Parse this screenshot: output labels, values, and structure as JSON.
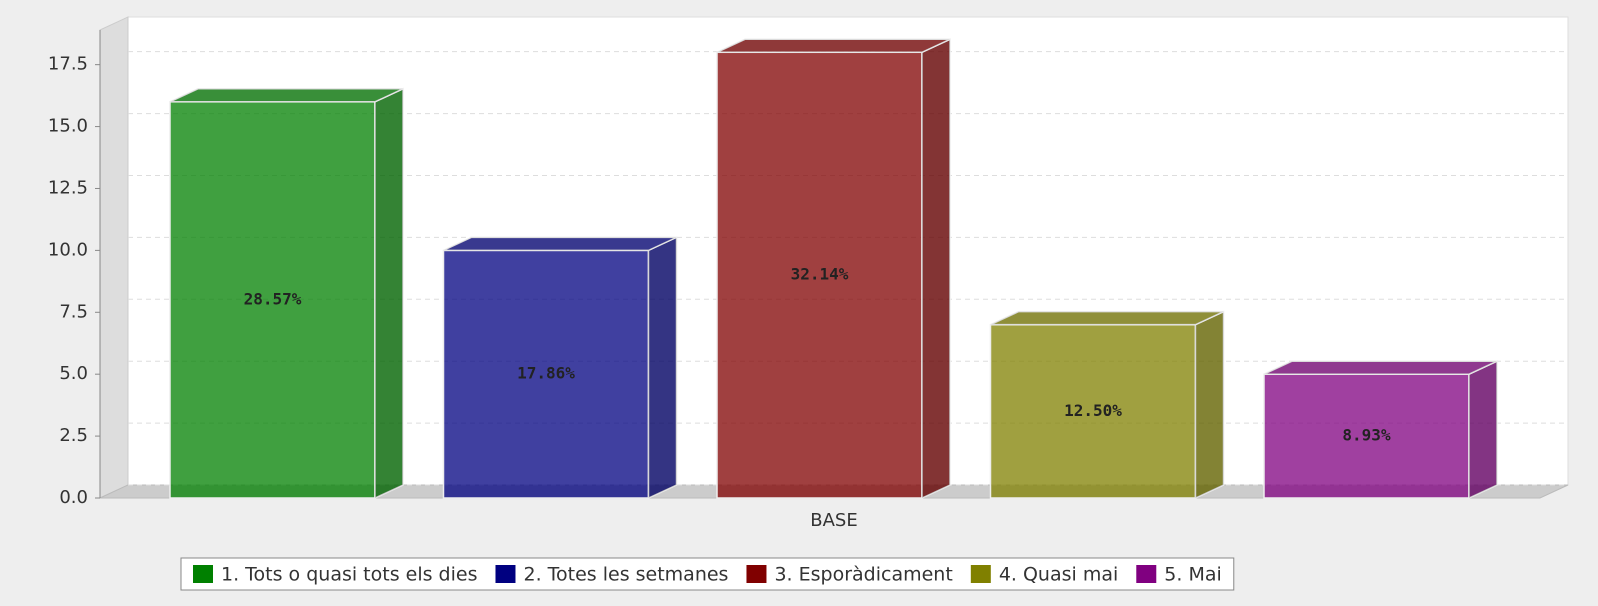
{
  "chart_data": {
    "type": "bar3d",
    "categories": [
      "BASE"
    ],
    "series": [
      {
        "name": "1. Tots o quasi tots els dies",
        "color": "#008000",
        "values": [
          16
        ],
        "value_labels": [
          "28.57%"
        ]
      },
      {
        "name": "2. Totes les setmanes",
        "color": "#000080",
        "values": [
          10
        ],
        "value_labels": [
          "17.86%"
        ]
      },
      {
        "name": "3. Esporàdicament",
        "color": "#800000",
        "values": [
          18
        ],
        "value_labels": [
          "32.14%"
        ]
      },
      {
        "name": "4. Quasi mai",
        "color": "#808000",
        "values": [
          7
        ],
        "value_labels": [
          "12.50%"
        ]
      },
      {
        "name": "5. Mai",
        "color": "#800080",
        "values": [
          5
        ],
        "value_labels": [
          "8.93%"
        ]
      }
    ],
    "ylim": [
      0,
      18.9
    ],
    "yticks": [
      {
        "value": 0,
        "label": "0.0"
      },
      2.5,
      {
        "value": 5,
        "label": "5.0"
      },
      7.5,
      {
        "value": 10,
        "label": "10.0"
      },
      12.5,
      {
        "value": 15,
        "label": "15.0"
      },
      17.5
    ],
    "grid": true,
    "legend": "bottom"
  }
}
